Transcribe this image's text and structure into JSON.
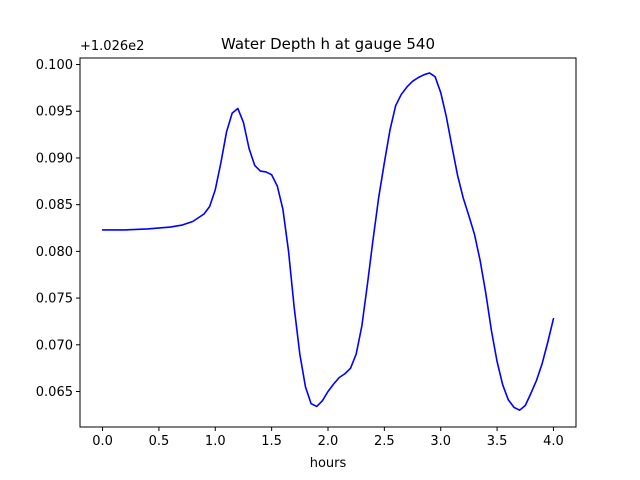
{
  "chart_data": {
    "type": "line",
    "title": "Water Depth h at gauge 540",
    "xlabel": "hours",
    "ylabel": "",
    "y_offset_label": "+1.026e2",
    "xlim": [
      -0.2,
      4.2
    ],
    "ylim": [
      0.0612,
      0.1007
    ],
    "xticks": [
      0.0,
      0.5,
      1.0,
      1.5,
      2.0,
      2.5,
      3.0,
      3.5,
      4.0
    ],
    "xtick_labels": [
      "0.0",
      "0.5",
      "1.0",
      "1.5",
      "2.0",
      "2.5",
      "3.0",
      "3.5",
      "4.0"
    ],
    "yticks": [
      0.065,
      0.07,
      0.075,
      0.08,
      0.085,
      0.09,
      0.095,
      0.1
    ],
    "ytick_labels": [
      "0.065",
      "0.070",
      "0.075",
      "0.080",
      "0.085",
      "0.090",
      "0.095",
      "0.100"
    ],
    "grid": false,
    "series": [
      {
        "color": "#0000ff",
        "x": [
          0.0,
          0.2,
          0.4,
          0.6,
          0.7,
          0.8,
          0.9,
          0.95,
          1.0,
          1.05,
          1.1,
          1.15,
          1.2,
          1.25,
          1.3,
          1.35,
          1.4,
          1.45,
          1.5,
          1.55,
          1.6,
          1.65,
          1.7,
          1.75,
          1.8,
          1.85,
          1.9,
          1.95,
          2.0,
          2.05,
          2.1,
          2.15,
          2.2,
          2.25,
          2.3,
          2.35,
          2.4,
          2.45,
          2.5,
          2.55,
          2.6,
          2.65,
          2.7,
          2.75,
          2.8,
          2.85,
          2.9,
          2.95,
          3.0,
          3.05,
          3.1,
          3.15,
          3.2,
          3.25,
          3.3,
          3.35,
          3.4,
          3.45,
          3.5,
          3.55,
          3.6,
          3.65,
          3.7,
          3.75,
          3.8,
          3.85,
          3.9,
          3.95,
          4.0
        ],
        "y": [
          0.0823,
          0.0823,
          0.0824,
          0.0826,
          0.0828,
          0.0832,
          0.084,
          0.0848,
          0.0866,
          0.0895,
          0.0928,
          0.0948,
          0.0953,
          0.0938,
          0.091,
          0.0892,
          0.0886,
          0.0885,
          0.0882,
          0.087,
          0.0845,
          0.08,
          0.074,
          0.069,
          0.0655,
          0.0637,
          0.0634,
          0.064,
          0.065,
          0.0658,
          0.0665,
          0.0669,
          0.0675,
          0.069,
          0.072,
          0.0765,
          0.0813,
          0.0858,
          0.0895,
          0.093,
          0.0956,
          0.0968,
          0.0976,
          0.0982,
          0.0986,
          0.0989,
          0.0991,
          0.0987,
          0.097,
          0.0944,
          0.0912,
          0.0881,
          0.0857,
          0.0838,
          0.0818,
          0.079,
          0.0755,
          0.0715,
          0.0682,
          0.0657,
          0.0641,
          0.0633,
          0.063,
          0.0635,
          0.0648,
          0.0662,
          0.068,
          0.0703,
          0.0728
        ]
      }
    ]
  }
}
